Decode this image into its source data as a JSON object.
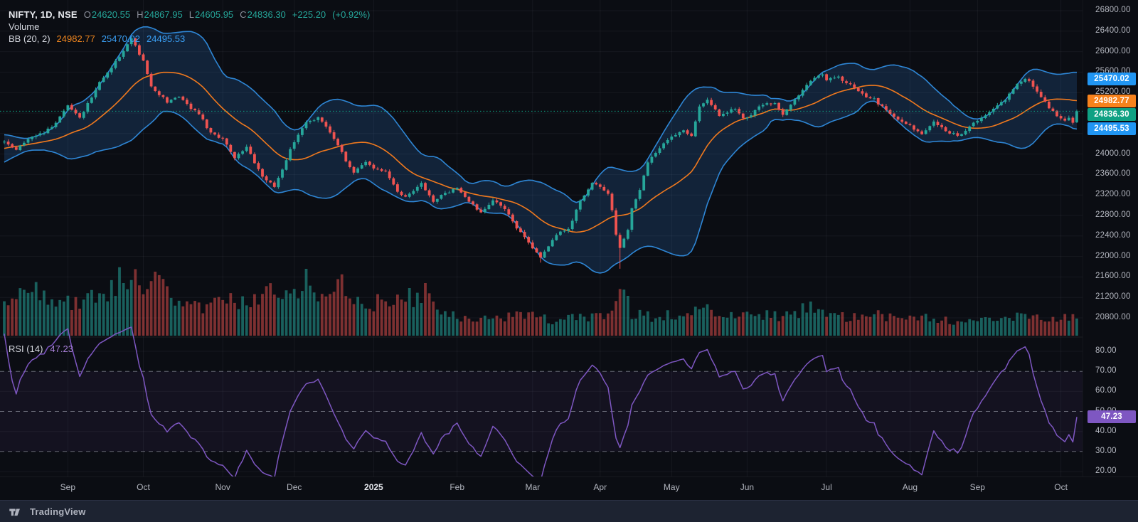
{
  "header": {
    "symbol_text": "NIFTY, 1D, NSE",
    "o_label": "O",
    "o": "24620.55",
    "h_label": "H",
    "h": "24867.95",
    "l_label": "L",
    "l": "24605.95",
    "c_label": "C",
    "c": "24836.30",
    "change": "+225.20",
    "change_pct": "(+0.92%)"
  },
  "volume_legend": {
    "label": "Volume"
  },
  "bb_legend": {
    "label": "BB (20, 2)",
    "basis": "24982.77",
    "upper": "25470.02",
    "lower": "24495.53"
  },
  "rsi_legend": {
    "label": "RSI (14)",
    "value": "47.23"
  },
  "footer": {
    "brand": "TradingView"
  },
  "chart_data": {
    "type": "candlestick+volume+rsi",
    "symbol": "NIFTY",
    "interval": "1D",
    "exchange": "NSE",
    "bars": 271,
    "last_bar": {
      "open": 24620.55,
      "high": 24867.95,
      "low": 24605.95,
      "close": 24836.3,
      "change": 225.2,
      "change_pct": 0.92
    },
    "last_price": 24836.3,
    "prev_close": 24611.1,
    "indicators": {
      "bollinger": {
        "length": 20,
        "mult": 2,
        "basis": 24982.77,
        "upper": 25470.02,
        "lower": 24495.53
      },
      "rsi": {
        "length": 14,
        "last": 47.23,
        "bands": [
          70,
          50,
          30
        ]
      },
      "volume": true
    },
    "price_scale": {
      "min": 20800,
      "max": 26800,
      "step": 400
    },
    "price_ticks": [
      "26800.00",
      "26400.00",
      "26000.00",
      "25600.00",
      "25200.00",
      "24800.00",
      "24400.00",
      "24000.00",
      "23600.00",
      "23200.00",
      "22800.00",
      "22400.00",
      "22000.00",
      "21600.00",
      "21200.00",
      "20800.00"
    ],
    "rsi_scale": {
      "min": 20,
      "max": 80
    },
    "rsi_ticks": [
      "80.00",
      "70.00",
      "60.00",
      "50.00",
      "40.00",
      "30.00",
      "20.00"
    ],
    "x_axis": {
      "months": [
        {
          "label": "Sep",
          "bar": 16,
          "emph": false
        },
        {
          "label": "Oct",
          "bar": 35,
          "emph": false
        },
        {
          "label": "Nov",
          "bar": 55,
          "emph": false
        },
        {
          "label": "Dec",
          "bar": 73,
          "emph": false
        },
        {
          "label": "2025",
          "bar": 93,
          "emph": true
        },
        {
          "label": "Feb",
          "bar": 114,
          "emph": false
        },
        {
          "label": "Mar",
          "bar": 133,
          "emph": false
        },
        {
          "label": "Apr",
          "bar": 150,
          "emph": false
        },
        {
          "label": "May",
          "bar": 168,
          "emph": false
        },
        {
          "label": "Jun",
          "bar": 187,
          "emph": false
        },
        {
          "label": "Jul",
          "bar": 207,
          "emph": false
        },
        {
          "label": "Aug",
          "bar": 228,
          "emph": false
        },
        {
          "label": "Sep",
          "bar": 245,
          "emph": false
        },
        {
          "label": "Oct",
          "bar": 266,
          "emph": false
        }
      ]
    },
    "close_anchors": [
      [
        0,
        24250
      ],
      [
        3,
        24080
      ],
      [
        6,
        24300
      ],
      [
        10,
        24430
      ],
      [
        13,
        24600
      ],
      [
        16,
        24950
      ],
      [
        19,
        24720
      ],
      [
        24,
        25380
      ],
      [
        29,
        25900
      ],
      [
        32,
        26250
      ],
      [
        35,
        25820
      ],
      [
        37,
        25320
      ],
      [
        41,
        25010
      ],
      [
        44,
        25130
      ],
      [
        49,
        24760
      ],
      [
        52,
        24420
      ],
      [
        55,
        24310
      ],
      [
        58,
        23920
      ],
      [
        61,
        24140
      ],
      [
        65,
        23560
      ],
      [
        68,
        23360
      ],
      [
        72,
        24080
      ],
      [
        76,
        24640
      ],
      [
        79,
        24690
      ],
      [
        81,
        24550
      ],
      [
        84,
        24160
      ],
      [
        86,
        23860
      ],
      [
        88,
        23660
      ],
      [
        91,
        23840
      ],
      [
        93,
        23740
      ],
      [
        96,
        23660
      ],
      [
        99,
        23260
      ],
      [
        101,
        23160
      ],
      [
        105,
        23440
      ],
      [
        108,
        23060
      ],
      [
        111,
        23240
      ],
      [
        114,
        23340
      ],
      [
        117,
        23060
      ],
      [
        120,
        22860
      ],
      [
        123,
        23090
      ],
      [
        126,
        22950
      ],
      [
        129,
        22560
      ],
      [
        133,
        22160
      ],
      [
        135,
        21990
      ],
      [
        136,
        22090
      ],
      [
        139,
        22440
      ],
      [
        142,
        22550
      ],
      [
        145,
        23080
      ],
      [
        148,
        23440
      ],
      [
        150,
        23340
      ],
      [
        152,
        23250
      ],
      [
        153,
        22900
      ],
      [
        154,
        22450
      ],
      [
        155,
        22170
      ],
      [
        157,
        22540
      ],
      [
        158,
        22940
      ],
      [
        160,
        23330
      ],
      [
        162,
        23840
      ],
      [
        165,
        24140
      ],
      [
        168,
        24330
      ],
      [
        171,
        24460
      ],
      [
        173,
        24340
      ],
      [
        175,
        24940
      ],
      [
        177,
        25060
      ],
      [
        180,
        24760
      ],
      [
        184,
        24880
      ],
      [
        186,
        24710
      ],
      [
        188,
        24780
      ],
      [
        190,
        24940
      ],
      [
        194,
        25000
      ],
      [
        196,
        24770
      ],
      [
        199,
        25090
      ],
      [
        202,
        25340
      ],
      [
        204,
        25490
      ],
      [
        206,
        25550
      ],
      [
        207,
        25460
      ],
      [
        210,
        25510
      ],
      [
        213,
        25350
      ],
      [
        216,
        25160
      ],
      [
        219,
        25060
      ],
      [
        222,
        24860
      ],
      [
        225,
        24660
      ],
      [
        228,
        24560
      ],
      [
        231,
        24380
      ],
      [
        234,
        24640
      ],
      [
        237,
        24460
      ],
      [
        240,
        24360
      ],
      [
        243,
        24540
      ],
      [
        245,
        24640
      ],
      [
        248,
        24840
      ],
      [
        252,
        25060
      ],
      [
        254,
        25290
      ],
      [
        257,
        25480
      ],
      [
        259,
        25340
      ],
      [
        261,
        25110
      ],
      [
        263,
        24910
      ],
      [
        265,
        24760
      ],
      [
        267,
        24660
      ],
      [
        268,
        24700
      ],
      [
        269,
        24611.1
      ],
      [
        270,
        24836.3
      ]
    ],
    "pre_anchors": [
      [
        -25,
        23650
      ],
      [
        -15,
        23980
      ],
      [
        -8,
        24220
      ],
      [
        -1,
        24230
      ]
    ],
    "wick_overrides": [
      [
        135,
        21880
      ],
      [
        155,
        21760
      ]
    ],
    "volume_envelope": [
      [
        0,
        0.6
      ],
      [
        8,
        0.7
      ],
      [
        14,
        0.55
      ],
      [
        22,
        0.6
      ],
      [
        28,
        0.85
      ],
      [
        30,
        0.95
      ],
      [
        34,
        0.8
      ],
      [
        37,
        0.9
      ],
      [
        40,
        0.75
      ],
      [
        46,
        0.5
      ],
      [
        52,
        0.5
      ],
      [
        58,
        0.55
      ],
      [
        64,
        0.6
      ],
      [
        68,
        0.8
      ],
      [
        72,
        0.6
      ],
      [
        76,
        1.0
      ],
      [
        78,
        0.7
      ],
      [
        82,
        0.6
      ],
      [
        85,
        0.9
      ],
      [
        88,
        0.65
      ],
      [
        92,
        0.55
      ],
      [
        97,
        0.5
      ],
      [
        102,
        0.6
      ],
      [
        106,
        0.75
      ],
      [
        110,
        0.4
      ],
      [
        114,
        0.3
      ],
      [
        120,
        0.28
      ],
      [
        126,
        0.32
      ],
      [
        133,
        0.3
      ],
      [
        138,
        0.25
      ],
      [
        144,
        0.28
      ],
      [
        150,
        0.3
      ],
      [
        154,
        0.55
      ],
      [
        156,
        0.75
      ],
      [
        158,
        0.35
      ],
      [
        163,
        0.3
      ],
      [
        168,
        0.35
      ],
      [
        172,
        0.4
      ],
      [
        176,
        0.45
      ],
      [
        180,
        0.3
      ],
      [
        186,
        0.3
      ],
      [
        192,
        0.35
      ],
      [
        198,
        0.3
      ],
      [
        202,
        0.5
      ],
      [
        206,
        0.35
      ],
      [
        212,
        0.3
      ],
      [
        218,
        0.42
      ],
      [
        224,
        0.26
      ],
      [
        230,
        0.3
      ],
      [
        236,
        0.25
      ],
      [
        242,
        0.22
      ],
      [
        248,
        0.26
      ],
      [
        254,
        0.3
      ],
      [
        260,
        0.28
      ],
      [
        265,
        0.25
      ],
      [
        270,
        0.33
      ]
    ],
    "badges": [
      {
        "text": "25470.02",
        "value": 25470.02,
        "color": "#2196f3",
        "pane": "price",
        "name": "bb-upper-badge"
      },
      {
        "text": "24982.77",
        "value": 24982.77,
        "color": "#f8821c",
        "pane": "price",
        "name": "bb-basis-badge"
      },
      {
        "text": "24836.30",
        "value": 24836.3,
        "color": "#0fa183",
        "pane": "price",
        "name": "last-price-badge"
      },
      {
        "text": "24495.53",
        "value": 24495.53,
        "color": "#2196f3",
        "pane": "price",
        "name": "bb-lower-badge"
      },
      {
        "text": "47.23",
        "value": 47.23,
        "color": "#7e57c2",
        "pane": "rsi",
        "name": "rsi-value-badge"
      }
    ],
    "colors": {
      "up": "#26a69a",
      "down": "#ef5350",
      "vol_up": "rgba(38,166,154,0.55)",
      "vol_down": "rgba(239,83,80,0.5)",
      "bb_line": "#2e86d5",
      "bb_basis": "#f0791e",
      "bb_fill": "rgba(51,131,221,0.19)",
      "rsi": "#7e57c2",
      "rsi_fill": "rgba(126,87,194,0.08)",
      "last_line": "#0fa183",
      "grid": "rgba(240,244,255,0.05)",
      "dashed": "rgba(190,195,208,0.5)"
    },
    "seed": 11
  }
}
